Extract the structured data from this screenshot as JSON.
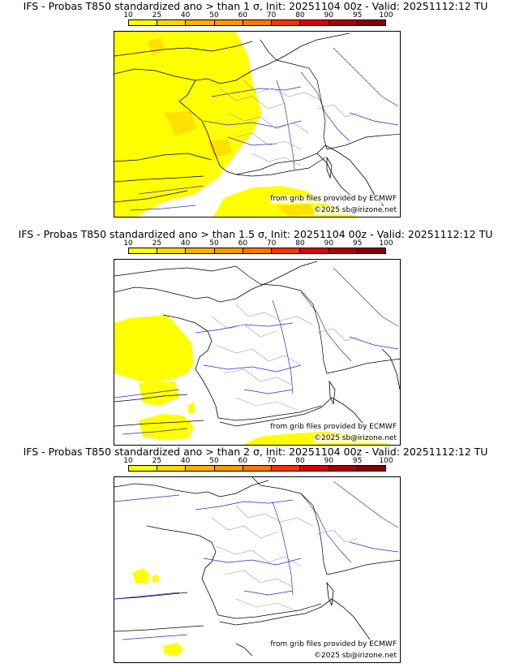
{
  "colorbar": {
    "labels": [
      "10",
      "25",
      "40",
      "50",
      "60",
      "70",
      "80",
      "90",
      "95",
      "100"
    ],
    "colors": [
      "#ffff00",
      "#ffd700",
      "#ffb000",
      "#ff9900",
      "#ff7700",
      "#ff3300",
      "#dd0000",
      "#aa0000",
      "#880000"
    ]
  },
  "colors": {
    "land_border": "#000000",
    "coast": "#000000",
    "river": "#2a2ad0",
    "region": "#a0a0a0",
    "probability_fill": "#ffff00",
    "probability_fill_higher": "#ffd700"
  },
  "panels": [
    {
      "title": "IFS - Probas T850  standardized ano > than 1 σ, Init: 20251104 00z - Valid: 20251112:12 TU",
      "credit_source": "from grib files provided by ECMWF",
      "credit_site": "©2025 sb@irizone.net"
    },
    {
      "title": "IFS - Probas T850  standardized ano > than 1.5 σ, Init: 20251104 00z - Valid: 20251112:12 TU",
      "credit_source": "from grib files provided by ECMWF",
      "credit_site": "©2025 sb@irizone.net"
    },
    {
      "title": "IFS - Probas T850  standardized ano > than 2 σ, Init: 20251104 00z - Valid: 20251112:12 TU",
      "credit_source": "from grib files provided by ECMWF",
      "credit_site": "©2025 sb@irizone.net"
    }
  ]
}
